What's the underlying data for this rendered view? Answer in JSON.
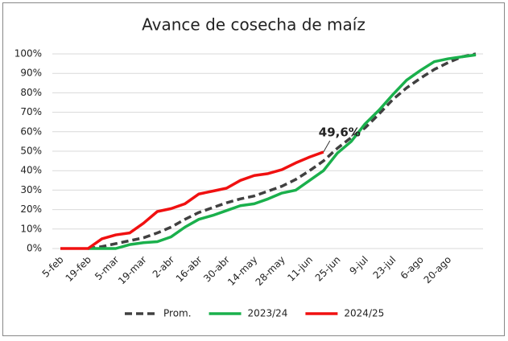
{
  "chart_data": {
    "type": "line",
    "title": "Avance de cosecha de maíz",
    "categories": [
      "5-feb",
      null,
      "19-feb",
      null,
      "5-mar",
      null,
      "19-mar",
      null,
      "2-abr",
      null,
      "16-abr",
      null,
      "30-abr",
      null,
      "14-may",
      null,
      "28-may",
      null,
      "11-jun",
      null,
      "25-jun",
      null,
      "9-jul",
      null,
      "23-jul",
      null,
      "6-ago",
      null,
      "20-ago",
      null,
      null
    ],
    "series": [
      {
        "name": "Prom.",
        "color": "#404040",
        "dash": true,
        "values": [
          null,
          null,
          0,
          1,
          2.5,
          4,
          5.5,
          8,
          11,
          15,
          18.5,
          21,
          23.5,
          25.5,
          27,
          29.5,
          32,
          35.5,
          40,
          45,
          51.5,
          57,
          62,
          69,
          76.5,
          82.5,
          87.5,
          92,
          95.5,
          98.5,
          100
        ]
      },
      {
        "name": "2023/24",
        "color": "#1ab04c",
        "dash": false,
        "values": [
          null,
          null,
          0,
          0,
          0,
          2,
          3,
          3.5,
          6,
          11,
          15,
          17,
          19.5,
          22,
          23,
          25.5,
          28.5,
          30,
          35,
          40,
          49,
          55,
          64,
          71,
          79,
          86.5,
          91.5,
          96,
          97.5,
          98.5,
          99.5
        ]
      },
      {
        "name": "2024/25",
        "color": "#f01010",
        "dash": false,
        "values": [
          0,
          0,
          0,
          5,
          7,
          8,
          13,
          19,
          20.5,
          23,
          28,
          29.5,
          31,
          35,
          37.5,
          38.5,
          40.5,
          44,
          47,
          49.6,
          null,
          null,
          null,
          null,
          null,
          null,
          null,
          null,
          null,
          null,
          null
        ],
        "value_labels": [
          null,
          null,
          null,
          null,
          null,
          null,
          null,
          null,
          null,
          null,
          null,
          null,
          null,
          null,
          null,
          null,
          null,
          null,
          null,
          "49,6%",
          null,
          null,
          null,
          null,
          null,
          null,
          null,
          null,
          null,
          null,
          null
        ]
      }
    ],
    "ylim": [
      0,
      100
    ],
    "yticks": [
      {
        "value": 0,
        "label": "0%"
      },
      {
        "value": 10,
        "label": "10%"
      },
      {
        "value": 20,
        "label": "20%"
      },
      {
        "value": 30,
        "label": "30%"
      },
      {
        "value": 40,
        "label": "40%"
      },
      {
        "value": 50,
        "label": "50%"
      },
      {
        "value": 60,
        "label": "60%"
      },
      {
        "value": 70,
        "label": "70%"
      },
      {
        "value": 80,
        "label": "80%"
      },
      {
        "value": 90,
        "label": "90%"
      },
      {
        "value": 100,
        "label": "100%"
      }
    ],
    "grid": true,
    "legend": "bottom"
  }
}
